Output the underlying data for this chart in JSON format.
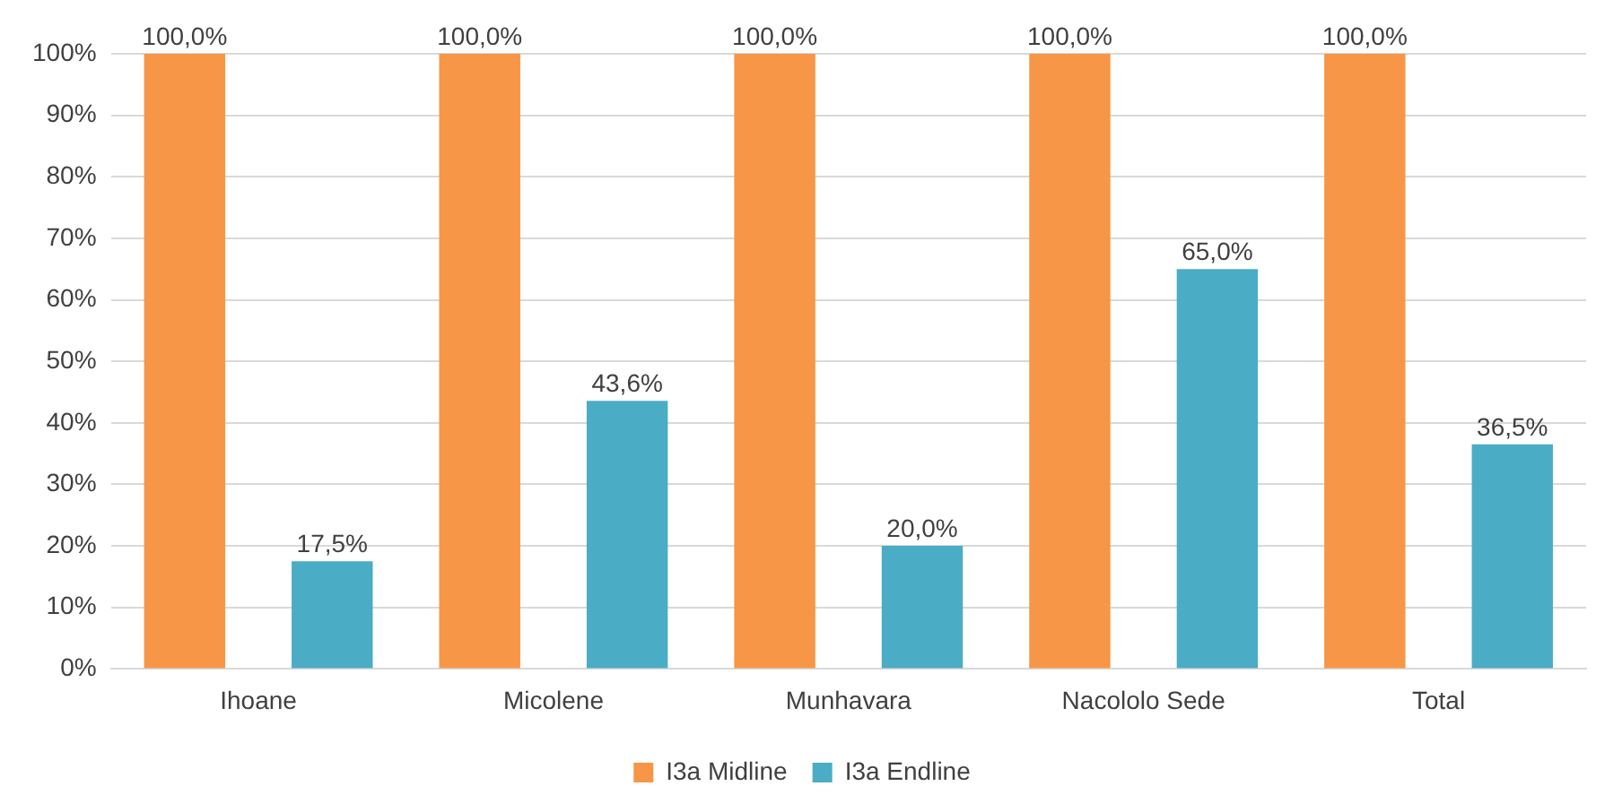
{
  "chart_data": {
    "type": "bar",
    "categories": [
      "Ihoane",
      "Micolene",
      "Munhavara",
      "Nacololo Sede",
      "Total"
    ],
    "series": [
      {
        "name": "I3a Midline",
        "color": "#f79646",
        "values": [
          100,
          100,
          100,
          100,
          100
        ],
        "value_labels": [
          "100,0%",
          "100,0%",
          "100,0%",
          "100,0%",
          "100,0%"
        ]
      },
      {
        "name": "I3a Endline",
        "color": "#4bacc6",
        "values": [
          17.5,
          43.6,
          20.0,
          65.0,
          36.5
        ],
        "value_labels": [
          "17,5%",
          "43,6%",
          "20,0%",
          "65,0%",
          "36,5%"
        ]
      }
    ],
    "ylim": [
      0,
      100
    ],
    "yticks": [
      {
        "value": 0,
        "label": "0%"
      },
      {
        "value": 10,
        "label": "10%"
      },
      {
        "value": 20,
        "label": "20%"
      },
      {
        "value": 30,
        "label": "30%"
      },
      {
        "value": 40,
        "label": "40%"
      },
      {
        "value": 50,
        "label": "50%"
      },
      {
        "value": 60,
        "label": "60%"
      },
      {
        "value": 70,
        "label": "70%"
      },
      {
        "value": 80,
        "label": "80%"
      },
      {
        "value": 90,
        "label": "90%"
      },
      {
        "value": 100,
        "label": "100%"
      }
    ],
    "grid": "y",
    "legend": "bottom"
  }
}
